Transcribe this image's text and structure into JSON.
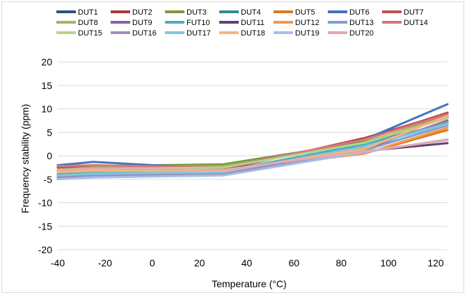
{
  "chart_data": {
    "type": "line",
    "xlabel": "Temperature (°C)",
    "ylabel": "Frequency stability (ppm)",
    "xlim": [
      -40,
      125
    ],
    "ylim": [
      -20,
      20
    ],
    "x_ticks": [
      "-40",
      "-20",
      "0",
      "20",
      "40",
      "60",
      "80",
      "100",
      "120"
    ],
    "y_ticks": [
      "20",
      "15",
      "10",
      "5",
      "0",
      "-5",
      "-10",
      "-15",
      "-20"
    ],
    "grid": "horizontal",
    "legend_position": "top",
    "x": [
      -40,
      -25,
      30,
      90,
      125
    ],
    "series": [
      {
        "name": "DUT1",
        "color": "#2e4f86",
        "values": [
          -4.2,
          -3.8,
          -3.5,
          2.5,
          8.2
        ]
      },
      {
        "name": "DUT2",
        "color": "#b03a37",
        "values": [
          -3.0,
          -2.5,
          -3.0,
          3.8,
          9.0
        ]
      },
      {
        "name": "DUT3",
        "color": "#7a9a3a",
        "values": [
          -2.5,
          -2.2,
          -1.8,
          3.0,
          8.0
        ]
      },
      {
        "name": "DUT4",
        "color": "#2f8b8f",
        "values": [
          -4.0,
          -3.5,
          -3.5,
          2.0,
          7.0
        ]
      },
      {
        "name": "DUT5",
        "color": "#d97a1d",
        "values": [
          -3.0,
          -2.8,
          -3.2,
          0.5,
          5.5
        ]
      },
      {
        "name": "DUT6",
        "color": "#4472c4",
        "values": [
          -2.0,
          -1.3,
          -2.8,
          3.5,
          11.0
        ]
      },
      {
        "name": "DUT7",
        "color": "#c0504d",
        "values": [
          -2.5,
          -2.0,
          -2.7,
          3.5,
          9.2
        ]
      },
      {
        "name": "DUT8",
        "color": "#9bbb59",
        "values": [
          -3.0,
          -2.5,
          -2.2,
          2.8,
          8.5
        ]
      },
      {
        "name": "DUT9",
        "color": "#8064a2",
        "values": [
          -4.0,
          -3.6,
          -3.3,
          1.5,
          7.5
        ]
      },
      {
        "name": "FUT10",
        "color": "#4bacc6",
        "values": [
          -3.8,
          -3.5,
          -3.3,
          2.5,
          7.0
        ]
      },
      {
        "name": "DUT11",
        "color": "#5f3f7a",
        "values": [
          -4.5,
          -4.0,
          -3.5,
          1.0,
          2.7
        ]
      },
      {
        "name": "DUT12",
        "color": "#f79646",
        "values": [
          -3.2,
          -3.0,
          -3.2,
          0.5,
          6.0
        ]
      },
      {
        "name": "DUT13",
        "color": "#7f9ed1",
        "values": [
          -4.8,
          -4.3,
          -3.8,
          1.2,
          6.5
        ]
      },
      {
        "name": "DUT14",
        "color": "#d6777a",
        "values": [
          -2.2,
          -2.0,
          -2.5,
          3.5,
          8.8
        ]
      },
      {
        "name": "DUT15",
        "color": "#b5d38a",
        "values": [
          -3.3,
          -2.8,
          -2.5,
          2.8,
          8.0
        ]
      },
      {
        "name": "DUT16",
        "color": "#9e8cb9",
        "values": [
          -4.5,
          -4.0,
          -3.8,
          1.8,
          7.2
        ]
      },
      {
        "name": "DUT17",
        "color": "#7ec8d8",
        "values": [
          -4.2,
          -3.8,
          -3.5,
          2.0,
          6.8
        ]
      },
      {
        "name": "DUT18",
        "color": "#f9b27c",
        "values": [
          -3.5,
          -3.2,
          -3.2,
          1.5,
          8.5
        ]
      },
      {
        "name": "DUT19",
        "color": "#a9bde6",
        "values": [
          -5.0,
          -4.6,
          -4.2,
          0.8,
          3.5
        ]
      },
      {
        "name": "DUT20",
        "color": "#e3aaad",
        "values": [
          -3.0,
          -2.8,
          -3.0,
          1.0,
          3.3
        ]
      }
    ]
  }
}
